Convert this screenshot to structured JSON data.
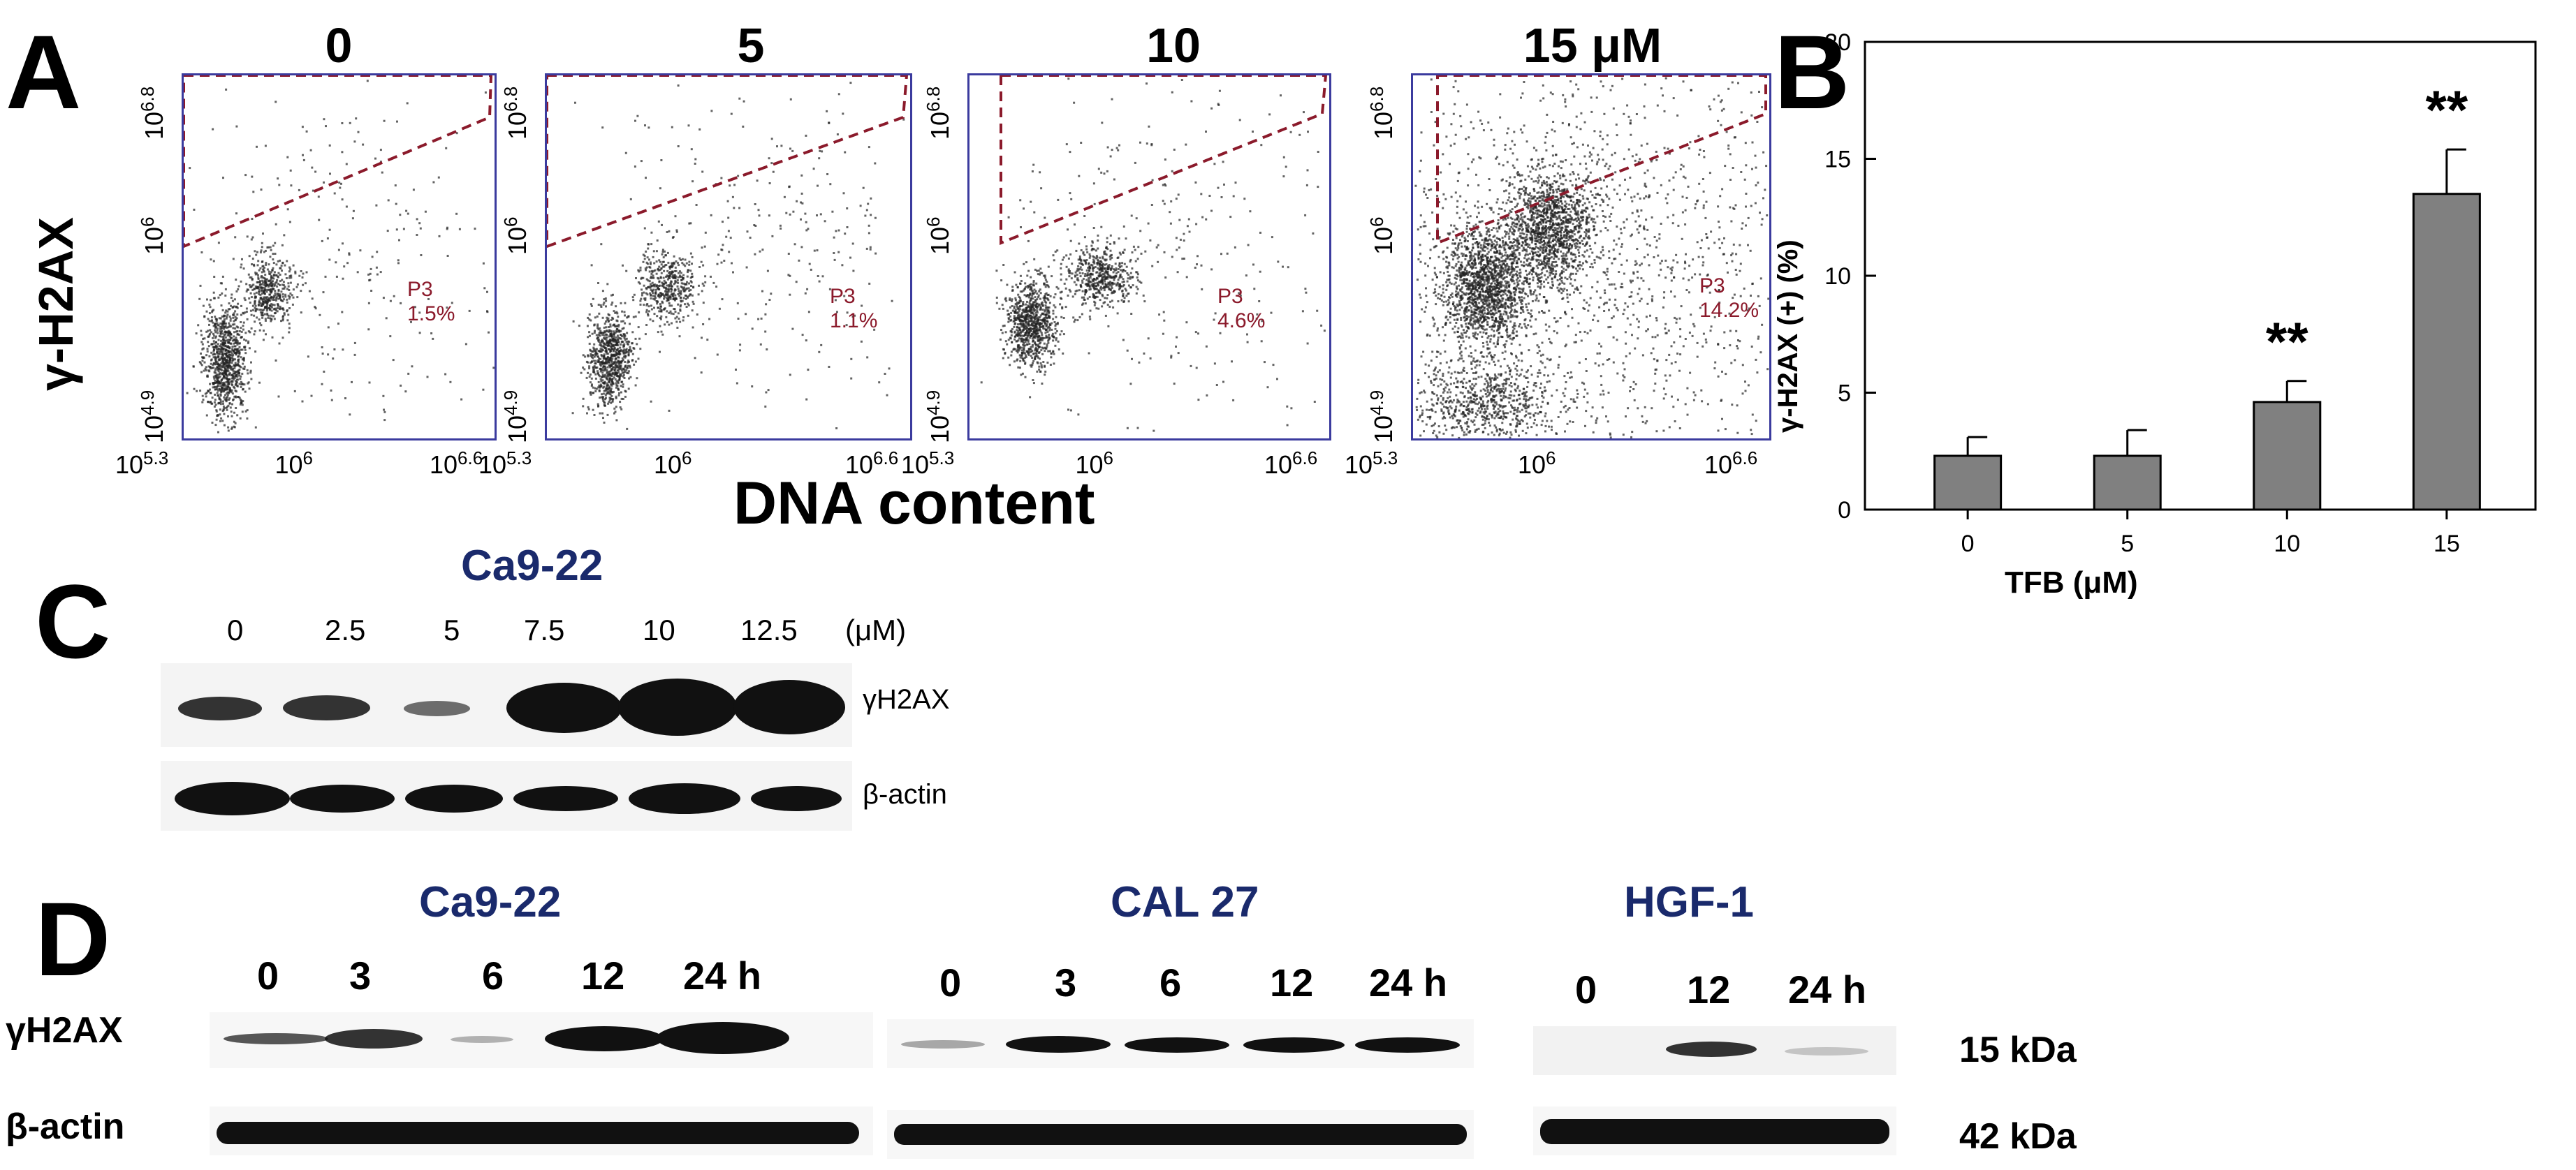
{
  "panels": {
    "A": "A",
    "B": "B",
    "C": "C",
    "D": "D"
  },
  "panelA": {
    "plots": [
      {
        "title": "0",
        "gate_name": "P3",
        "gate_pct": "1.5%"
      },
      {
        "title": "5",
        "gate_name": "P3",
        "gate_pct": "1.1%"
      },
      {
        "title": "10",
        "gate_name": "P3",
        "gate_pct": "4.6%"
      },
      {
        "title": "15 μM",
        "gate_name": "P3",
        "gate_pct": "14.2%"
      }
    ],
    "ylabel": "γ-H2AX",
    "xlabel": "DNA content",
    "x_ticks": [
      {
        "base": "10",
        "exp": "5.3"
      },
      {
        "base": "10",
        "exp": "6"
      },
      {
        "base": "10",
        "exp": "6.6"
      }
    ],
    "y_ticks": [
      {
        "base": "10",
        "exp": "4.9"
      },
      {
        "base": "10",
        "exp": "6"
      },
      {
        "base": "10",
        "exp": "6.8"
      }
    ]
  },
  "chart_data": {
    "type": "bar",
    "categories": [
      "0",
      "5",
      "10",
      "15"
    ],
    "values": [
      2.3,
      2.3,
      4.6,
      13.5
    ],
    "errors": [
      0.8,
      1.1,
      0.9,
      1.9
    ],
    "significance": [
      "",
      "",
      "**",
      "**"
    ],
    "xlabel": "TFB (μM)",
    "ylabel": "γ-H2AX (+) (%)",
    "ylim": [
      0,
      20
    ],
    "yticks": [
      0,
      5,
      10,
      15,
      20
    ],
    "bar_color": "#808080",
    "grid": false
  },
  "panelC": {
    "cell_line": "Ca9-22",
    "lanes": [
      "0",
      "2.5",
      "5",
      "7.5",
      "10",
      "12.5"
    ],
    "unit": "(μM)",
    "rows": [
      "γH2AX",
      "β-actin"
    ]
  },
  "panelD": {
    "groups": [
      {
        "cell_line": "Ca9-22",
        "lanes": [
          "0",
          "3",
          "6",
          "12",
          "24 h"
        ]
      },
      {
        "cell_line": "CAL 27",
        "lanes": [
          "0",
          "3",
          "6",
          "12",
          "24 h"
        ]
      },
      {
        "cell_line": "HGF-1",
        "lanes": [
          "0",
          "12",
          "24 h"
        ]
      }
    ],
    "rows": [
      "γH2AX",
      "β-actin"
    ],
    "sizes": [
      "15 kDa",
      "42 kDa"
    ]
  },
  "colors": {
    "axis_blue": "#3b3b9e",
    "gate": "#8b1a2b",
    "cell_line_blue": "#1a2a6c",
    "bar": "#808080"
  }
}
